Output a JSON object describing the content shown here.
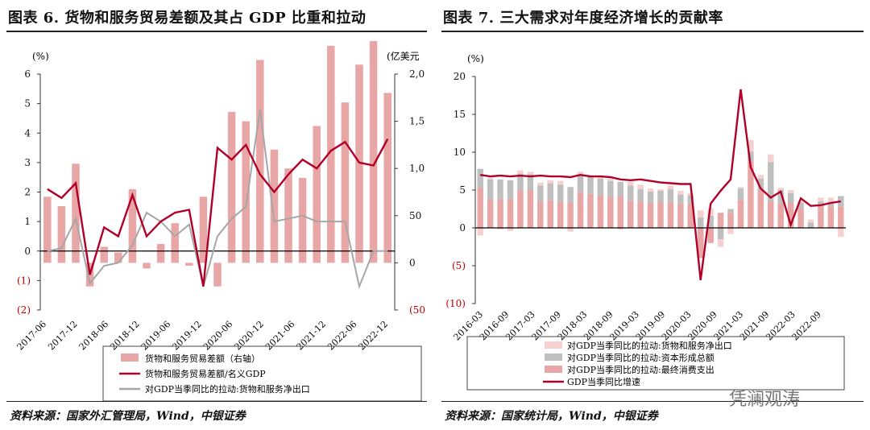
{
  "left": {
    "title": "图表 6. 货物和服务贸易差额及其占 GDP 比重和拉动",
    "source": "资料来源：国家外汇管理局，Wind，中银证券",
    "chart_data": {
      "type": "bar+line",
      "ylabel_left": "(%)",
      "ylabel_right": "(亿美元",
      "yticks_left": [
        "6",
        "5",
        "4",
        "3",
        "2",
        "1",
        "0",
        "(1)",
        "(2)"
      ],
      "yticks_right": [
        "2,0",
        "1,5",
        "1,0",
        "50",
        "0",
        "(50"
      ],
      "ylim_left": [
        -2,
        6
      ],
      "ylim_right": [
        -500,
        2000
      ],
      "x_labels": [
        "2017-06",
        "2017-12",
        "2018-06",
        "2018-12",
        "2019-06",
        "2019-12",
        "2020-06",
        "2020-12",
        "2021-06",
        "2021-12",
        "2022-06",
        "2022-12"
      ],
      "series": [
        {
          "name": "货物和服务贸易差额（右轴）",
          "axis": "right",
          "kind": "bar",
          "color": "#e8a6a6",
          "values": [
            700,
            600,
            1050,
            -250,
            170,
            110,
            780,
            -60,
            200,
            420,
            -30,
            700,
            -250,
            1600,
            1500,
            2150,
            1200,
            1000,
            900,
            1450,
            2300,
            1700,
            2100,
            2350,
            1800
          ]
        },
        {
          "name": "货物和服务贸易差额/名义GDP",
          "axis": "left",
          "kind": "line",
          "color": "#b00028",
          "values": [
            2.1,
            1.8,
            2.3,
            -0.8,
            0.8,
            0.5,
            1.9,
            0.5,
            1.0,
            1.3,
            1.4,
            -1.2,
            3.5,
            3.1,
            3.6,
            2.6,
            2.0,
            2.6,
            3.1,
            2.8,
            3.4,
            3.7,
            3.0,
            2.9,
            3.8
          ]
        },
        {
          "name": "对GDP当季同比的拉动:货物和服务净出口",
          "axis": "left",
          "kind": "line",
          "color": "#a6a6a6",
          "values": [
            0,
            0.1,
            1.1,
            -1.1,
            -0.5,
            -0.4,
            0.2,
            1.3,
            1.0,
            0.5,
            0.9,
            -1.2,
            0.5,
            1.1,
            1.5,
            4.8,
            1.0,
            1.1,
            1.2,
            1.0,
            1.0,
            1.0,
            -1.2,
            0,
            0
          ]
        }
      ]
    }
  },
  "right": {
    "title": "图表 7. 三大需求对年度经济增长的贡献率",
    "source": "资料来源：国家统计局，Wind，中银证券",
    "chart_data": {
      "type": "stacked-bar+line",
      "ylabel": "(%)",
      "yticks": [
        "20",
        "15",
        "10",
        "5",
        "0",
        "(5)",
        "(10)"
      ],
      "ylim": [
        -10,
        20
      ],
      "x_labels": [
        "2016-03",
        "2016-09",
        "2017-03",
        "2017-09",
        "2018-03",
        "2018-09",
        "2019-03",
        "2019-09",
        "2020-03",
        "2020-09",
        "2021-03",
        "2021-09",
        "2022-03",
        "2022-09"
      ],
      "series": [
        {
          "name": "对GDP当季同比的拉动:货物和服务净出口",
          "kind": "bar",
          "color": "#f6d0d0",
          "values": [
            -1.0,
            0.2,
            -0.2,
            -0.4,
            0.4,
            0.3,
            0.4,
            0.4,
            0.5,
            -0.5,
            0.3,
            0,
            0.3,
            0.3,
            -0.2,
            0.5,
            0.6,
            0.4,
            0.2,
            0.5,
            0.5,
            0.3,
            0.9,
            1.0,
            -1.0,
            -0.8,
            0.2,
            1.5,
            0.5,
            1.0,
            0.3,
            0.4,
            0.2,
            0.4,
            0.5,
            0.6,
            -1.2
          ]
        },
        {
          "name": "对GDP当季同比的拉动:资本形成总额",
          "kind": "bar",
          "color": "#bfbfbf",
          "values": [
            2.5,
            2.6,
            2.6,
            2.5,
            2.2,
            2.1,
            2.1,
            2.2,
            2.2,
            2.1,
            2.4,
            2.3,
            2.2,
            2.1,
            1.9,
            2.0,
            1.6,
            1.5,
            1.5,
            1.7,
            1.2,
            1.2,
            1.4,
            1.6,
            -1.5,
            0.5,
            1.5,
            1.3,
            1.5,
            5.2,
            1.8,
            1.3,
            0.7,
            0.7,
            0.6,
            0.6,
            1.4
          ]
        },
        {
          "name": "对GDP当季同比的拉动:最终消费支出",
          "kind": "bar",
          "color": "#e8a6a6",
          "values": [
            5.3,
            3.8,
            3.8,
            3.8,
            5.0,
            5.0,
            3.5,
            3.7,
            3.5,
            3.3,
            4.7,
            4.5,
            4.3,
            4.1,
            4.2,
            3.6,
            3.5,
            3.3,
            3.4,
            3.4,
            3.2,
            3.1,
            -4.0,
            -2.0,
            2.0,
            2.0,
            3.7,
            8.8,
            5.0,
            3.5,
            3.2,
            3.3,
            2.6,
            0.0,
            2.9,
            2.8,
            2.8
          ]
        },
        {
          "name": "GDP当季同比增速",
          "kind": "line",
          "color": "#b00028",
          "values": [
            7.0,
            6.8,
            6.9,
            6.8,
            6.9,
            6.8,
            6.9,
            6.8,
            6.8,
            6.7,
            7.0,
            6.8,
            6.8,
            6.7,
            6.4,
            6.3,
            6.4,
            6.2,
            6.0,
            5.9,
            5.8,
            5.8,
            -6.9,
            3.2,
            4.9,
            6.4,
            18.3,
            8.0,
            5.2,
            4.0,
            4.8,
            0.4,
            3.9,
            2.9,
            3.0,
            3.3,
            3.5
          ]
        }
      ]
    }
  },
  "watermark": "凭澜观涛"
}
